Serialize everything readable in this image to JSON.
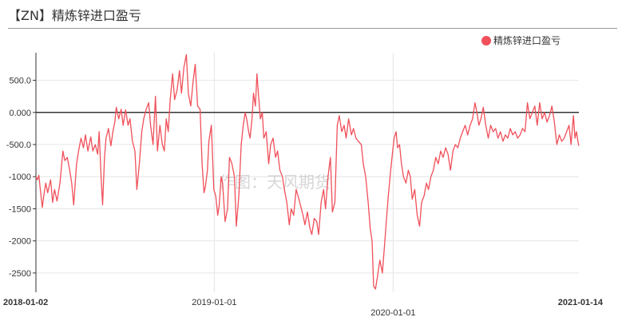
{
  "title": "【ZN】精炼锌进口盈亏",
  "watermark": "作图：天风期货",
  "colors": {
    "series": "#f0505a",
    "zero_line": "#333333",
    "grid": "#e6e6e6",
    "axis": "#333333"
  },
  "chart_data": {
    "type": "line",
    "title": "【ZN】精炼锌进口盈亏",
    "ylim": [
      -2800,
      930
    ],
    "yticks": [
      500,
      0,
      -500,
      -1000,
      -1500,
      -2000,
      -2500
    ],
    "ytick_labels": [
      "500.0",
      "0.000",
      "-500.0",
      "-1000",
      "-1500",
      "-2000",
      "-2500"
    ],
    "xticks": [
      {
        "date": "2018-01-02",
        "label": "2018-01-02",
        "bold": true,
        "row": 1
      },
      {
        "date": "2019-01-01",
        "label": "2019-01-01",
        "bold": false,
        "row": 1
      },
      {
        "date": "2020-01-01",
        "label": "2020-01-01",
        "bold": false,
        "row": 2
      },
      {
        "date": "2021-01-14",
        "label": "2021-01-14",
        "bold": true,
        "row": 1
      }
    ],
    "grid": true,
    "zero_line": true,
    "legend": {
      "position": "top-right",
      "marker": "circle"
    },
    "series": [
      {
        "name": "精炼锌进口盈亏",
        "points": [
          [
            "2018-01-02",
            -1000
          ],
          [
            "2018-01-05",
            -1050
          ],
          [
            "2018-01-08",
            -980
          ],
          [
            "2018-01-11",
            -1200
          ],
          [
            "2018-01-15",
            -1480
          ],
          [
            "2018-01-18",
            -1300
          ],
          [
            "2018-01-22",
            -1100
          ],
          [
            "2018-01-26",
            -1250
          ],
          [
            "2018-02-01",
            -1050
          ],
          [
            "2018-02-05",
            -1400
          ],
          [
            "2018-02-09",
            -1200
          ],
          [
            "2018-02-14",
            -1380
          ],
          [
            "2018-02-20",
            -1100
          ],
          [
            "2018-02-26",
            -600
          ],
          [
            "2018-03-02",
            -750
          ],
          [
            "2018-03-07",
            -700
          ],
          [
            "2018-03-12",
            -900
          ],
          [
            "2018-03-16",
            -1100
          ],
          [
            "2018-03-20",
            -1440
          ],
          [
            "2018-03-26",
            -800
          ],
          [
            "2018-03-30",
            -600
          ],
          [
            "2018-04-04",
            -400
          ],
          [
            "2018-04-09",
            -550
          ],
          [
            "2018-04-13",
            -350
          ],
          [
            "2018-04-18",
            -600
          ],
          [
            "2018-04-24",
            -380
          ],
          [
            "2018-04-28",
            -600
          ],
          [
            "2018-05-03",
            -500
          ],
          [
            "2018-05-08",
            -650
          ],
          [
            "2018-05-11",
            -300
          ],
          [
            "2018-05-15",
            -1000
          ],
          [
            "2018-05-18",
            -1440
          ],
          [
            "2018-05-22",
            -700
          ],
          [
            "2018-05-25",
            -400
          ],
          [
            "2018-05-30",
            -250
          ],
          [
            "2018-06-04",
            -520
          ],
          [
            "2018-06-08",
            -300
          ],
          [
            "2018-06-12",
            -150
          ],
          [
            "2018-06-15",
            80
          ],
          [
            "2018-06-20",
            -100
          ],
          [
            "2018-06-25",
            50
          ],
          [
            "2018-06-29",
            -200
          ],
          [
            "2018-07-04",
            40
          ],
          [
            "2018-07-09",
            -200
          ],
          [
            "2018-07-13",
            -100
          ],
          [
            "2018-07-18",
            -450
          ],
          [
            "2018-07-23",
            -600
          ],
          [
            "2018-07-27",
            -1200
          ],
          [
            "2018-08-01",
            -800
          ],
          [
            "2018-08-06",
            -300
          ],
          [
            "2018-08-10",
            -100
          ],
          [
            "2018-08-15",
            50
          ],
          [
            "2018-08-20",
            150
          ],
          [
            "2018-08-24",
            -200
          ],
          [
            "2018-08-29",
            -500
          ],
          [
            "2018-09-03",
            250
          ],
          [
            "2018-09-07",
            -600
          ],
          [
            "2018-09-12",
            -200
          ],
          [
            "2018-09-17",
            -500
          ],
          [
            "2018-09-21",
            -600
          ],
          [
            "2018-09-25",
            -100
          ],
          [
            "2018-09-29",
            -300
          ],
          [
            "2018-10-03",
            200
          ],
          [
            "2018-10-08",
            600
          ],
          [
            "2018-10-12",
            200
          ],
          [
            "2018-10-17",
            350
          ],
          [
            "2018-10-22",
            650
          ],
          [
            "2018-10-26",
            300
          ],
          [
            "2018-10-31",
            700
          ],
          [
            "2018-11-05",
            900
          ],
          [
            "2018-11-09",
            300
          ],
          [
            "2018-11-14",
            100
          ],
          [
            "2018-11-19",
            500
          ],
          [
            "2018-11-23",
            750
          ],
          [
            "2018-11-28",
            100
          ],
          [
            "2018-12-03",
            50
          ],
          [
            "2018-12-07",
            -800
          ],
          [
            "2018-12-11",
            -1250
          ],
          [
            "2018-12-14",
            -1150
          ],
          [
            "2018-12-18",
            -900
          ],
          [
            "2018-12-21",
            -450
          ],
          [
            "2018-12-26",
            -200
          ],
          [
            "2018-12-31",
            -1200
          ],
          [
            "2019-01-04",
            -1300
          ],
          [
            "2019-01-08",
            -1600
          ],
          [
            "2019-01-11",
            -1450
          ],
          [
            "2019-01-15",
            -1000
          ],
          [
            "2019-01-18",
            -1100
          ],
          [
            "2019-01-23",
            -1700
          ],
          [
            "2019-01-28",
            -1500
          ],
          [
            "2019-02-01",
            -700
          ],
          [
            "2019-02-06",
            -800
          ],
          [
            "2019-02-11",
            -1000
          ],
          [
            "2019-02-15",
            -1770
          ],
          [
            "2019-02-20",
            -1300
          ],
          [
            "2019-02-25",
            -500
          ],
          [
            "2019-03-01",
            -200
          ],
          [
            "2019-03-05",
            0
          ],
          [
            "2019-03-08",
            -100
          ],
          [
            "2019-03-12",
            -300
          ],
          [
            "2019-03-15",
            -400
          ],
          [
            "2019-03-19",
            -100
          ],
          [
            "2019-03-22",
            300
          ],
          [
            "2019-03-26",
            100
          ],
          [
            "2019-03-29",
            600
          ],
          [
            "2019-04-02",
            200
          ],
          [
            "2019-04-05",
            -100
          ],
          [
            "2019-04-09",
            0
          ],
          [
            "2019-04-12",
            -400
          ],
          [
            "2019-04-17",
            -300
          ],
          [
            "2019-04-22",
            -800
          ],
          [
            "2019-04-26",
            -500
          ],
          [
            "2019-05-01",
            -400
          ],
          [
            "2019-05-06",
            -700
          ],
          [
            "2019-05-10",
            -600
          ],
          [
            "2019-05-15",
            -900
          ],
          [
            "2019-05-20",
            -1000
          ],
          [
            "2019-05-24",
            -1200
          ],
          [
            "2019-05-29",
            -1400
          ],
          [
            "2019-06-03",
            -1750
          ],
          [
            "2019-06-07",
            -1500
          ],
          [
            "2019-06-12",
            -1600
          ],
          [
            "2019-06-17",
            -1200
          ],
          [
            "2019-06-21",
            -1300
          ],
          [
            "2019-06-26",
            -1450
          ],
          [
            "2019-07-01",
            -1600
          ],
          [
            "2019-07-05",
            -1750
          ],
          [
            "2019-07-10",
            -1550
          ],
          [
            "2019-07-15",
            -1800
          ],
          [
            "2019-07-19",
            -1900
          ],
          [
            "2019-07-24",
            -1650
          ],
          [
            "2019-07-29",
            -1700
          ],
          [
            "2019-08-02",
            -1900
          ],
          [
            "2019-08-07",
            -1400
          ],
          [
            "2019-08-12",
            -1200
          ],
          [
            "2019-08-16",
            -1500
          ],
          [
            "2019-08-21",
            -1000
          ],
          [
            "2019-08-26",
            -700
          ],
          [
            "2019-08-30",
            -1550
          ],
          [
            "2019-09-04",
            -1400
          ],
          [
            "2019-09-09",
            -200
          ],
          [
            "2019-09-13",
            -50
          ],
          [
            "2019-09-18",
            -300
          ],
          [
            "2019-09-23",
            -200
          ],
          [
            "2019-09-27",
            -400
          ],
          [
            "2019-10-02",
            -100
          ],
          [
            "2019-10-08",
            -350
          ],
          [
            "2019-10-12",
            -250
          ],
          [
            "2019-10-17",
            -400
          ],
          [
            "2019-10-22",
            -450
          ],
          [
            "2019-10-28",
            -500
          ],
          [
            "2019-11-01",
            -800
          ],
          [
            "2019-11-06",
            -1000
          ],
          [
            "2019-11-11",
            -1400
          ],
          [
            "2019-11-15",
            -1800
          ],
          [
            "2019-11-19",
            -2000
          ],
          [
            "2019-11-22",
            -2700
          ],
          [
            "2019-11-26",
            -2750
          ],
          [
            "2019-12-01",
            -2500
          ],
          [
            "2019-12-05",
            -2300
          ],
          [
            "2019-12-10",
            -2500
          ],
          [
            "2019-12-14",
            -2100
          ],
          [
            "2019-12-18",
            -1700
          ],
          [
            "2019-12-22",
            -1300
          ],
          [
            "2019-12-27",
            -900
          ],
          [
            "2019-12-31",
            -600
          ],
          [
            "2020-01-03",
            -400
          ],
          [
            "2020-01-07",
            -300
          ],
          [
            "2020-01-10",
            -550
          ],
          [
            "2020-01-14",
            -500
          ],
          [
            "2020-01-18",
            -800
          ],
          [
            "2020-01-22",
            -1000
          ],
          [
            "2020-01-27",
            -1100
          ],
          [
            "2020-02-01",
            -900
          ],
          [
            "2020-02-05",
            -1000
          ],
          [
            "2020-02-09",
            -1350
          ],
          [
            "2020-02-14",
            -1200
          ],
          [
            "2020-02-19",
            -1600
          ],
          [
            "2020-02-24",
            -1770
          ],
          [
            "2020-02-28",
            -1400
          ],
          [
            "2020-03-04",
            -1300
          ],
          [
            "2020-03-09",
            -1100
          ],
          [
            "2020-03-13",
            -1200
          ],
          [
            "2020-03-18",
            -1000
          ],
          [
            "2020-03-23",
            -900
          ],
          [
            "2020-03-28",
            -700
          ],
          [
            "2020-04-02",
            -800
          ],
          [
            "2020-04-07",
            -600
          ],
          [
            "2020-04-12",
            -700
          ],
          [
            "2020-04-17",
            -550
          ],
          [
            "2020-04-22",
            -650
          ],
          [
            "2020-04-27",
            -900
          ],
          [
            "2020-05-02",
            -600
          ],
          [
            "2020-05-07",
            -500
          ],
          [
            "2020-05-12",
            -550
          ],
          [
            "2020-05-17",
            -400
          ],
          [
            "2020-05-22",
            -300
          ],
          [
            "2020-05-27",
            -200
          ],
          [
            "2020-06-01",
            -350
          ],
          [
            "2020-06-06",
            -200
          ],
          [
            "2020-06-11",
            -100
          ],
          [
            "2020-06-16",
            150
          ],
          [
            "2020-06-20",
            0
          ],
          [
            "2020-06-24",
            -200
          ],
          [
            "2020-06-28",
            -100
          ],
          [
            "2020-07-03",
            80
          ],
          [
            "2020-07-08",
            -200
          ],
          [
            "2020-07-13",
            -400
          ],
          [
            "2020-07-18",
            -200
          ],
          [
            "2020-07-23",
            -300
          ],
          [
            "2020-07-28",
            -250
          ],
          [
            "2020-08-02",
            -400
          ],
          [
            "2020-08-07",
            -300
          ],
          [
            "2020-08-12",
            -450
          ],
          [
            "2020-08-17",
            -350
          ],
          [
            "2020-08-22",
            -400
          ],
          [
            "2020-08-27",
            -250
          ],
          [
            "2020-09-01",
            -350
          ],
          [
            "2020-09-06",
            -300
          ],
          [
            "2020-09-11",
            -400
          ],
          [
            "2020-09-16",
            -350
          ],
          [
            "2020-09-21",
            -250
          ],
          [
            "2020-09-26",
            -300
          ],
          [
            "2020-10-01",
            150
          ],
          [
            "2020-10-06",
            -100
          ],
          [
            "2020-10-11",
            0
          ],
          [
            "2020-10-16",
            100
          ],
          [
            "2020-10-21",
            -200
          ],
          [
            "2020-10-26",
            150
          ],
          [
            "2020-10-31",
            -100
          ],
          [
            "2020-11-05",
            0
          ],
          [
            "2020-11-10",
            -150
          ],
          [
            "2020-11-15",
            -50
          ],
          [
            "2020-11-20",
            100
          ],
          [
            "2020-11-25",
            -150
          ],
          [
            "2020-11-30",
            -500
          ],
          [
            "2020-12-05",
            -350
          ],
          [
            "2020-12-10",
            -450
          ],
          [
            "2020-12-15",
            -400
          ],
          [
            "2020-12-20",
            -300
          ],
          [
            "2020-12-25",
            -200
          ],
          [
            "2020-12-29",
            -500
          ],
          [
            "2021-01-03",
            -50
          ],
          [
            "2021-01-06",
            -400
          ],
          [
            "2021-01-09",
            -300
          ],
          [
            "2021-01-12",
            -450
          ],
          [
            "2021-01-14",
            -520
          ]
        ]
      }
    ]
  }
}
